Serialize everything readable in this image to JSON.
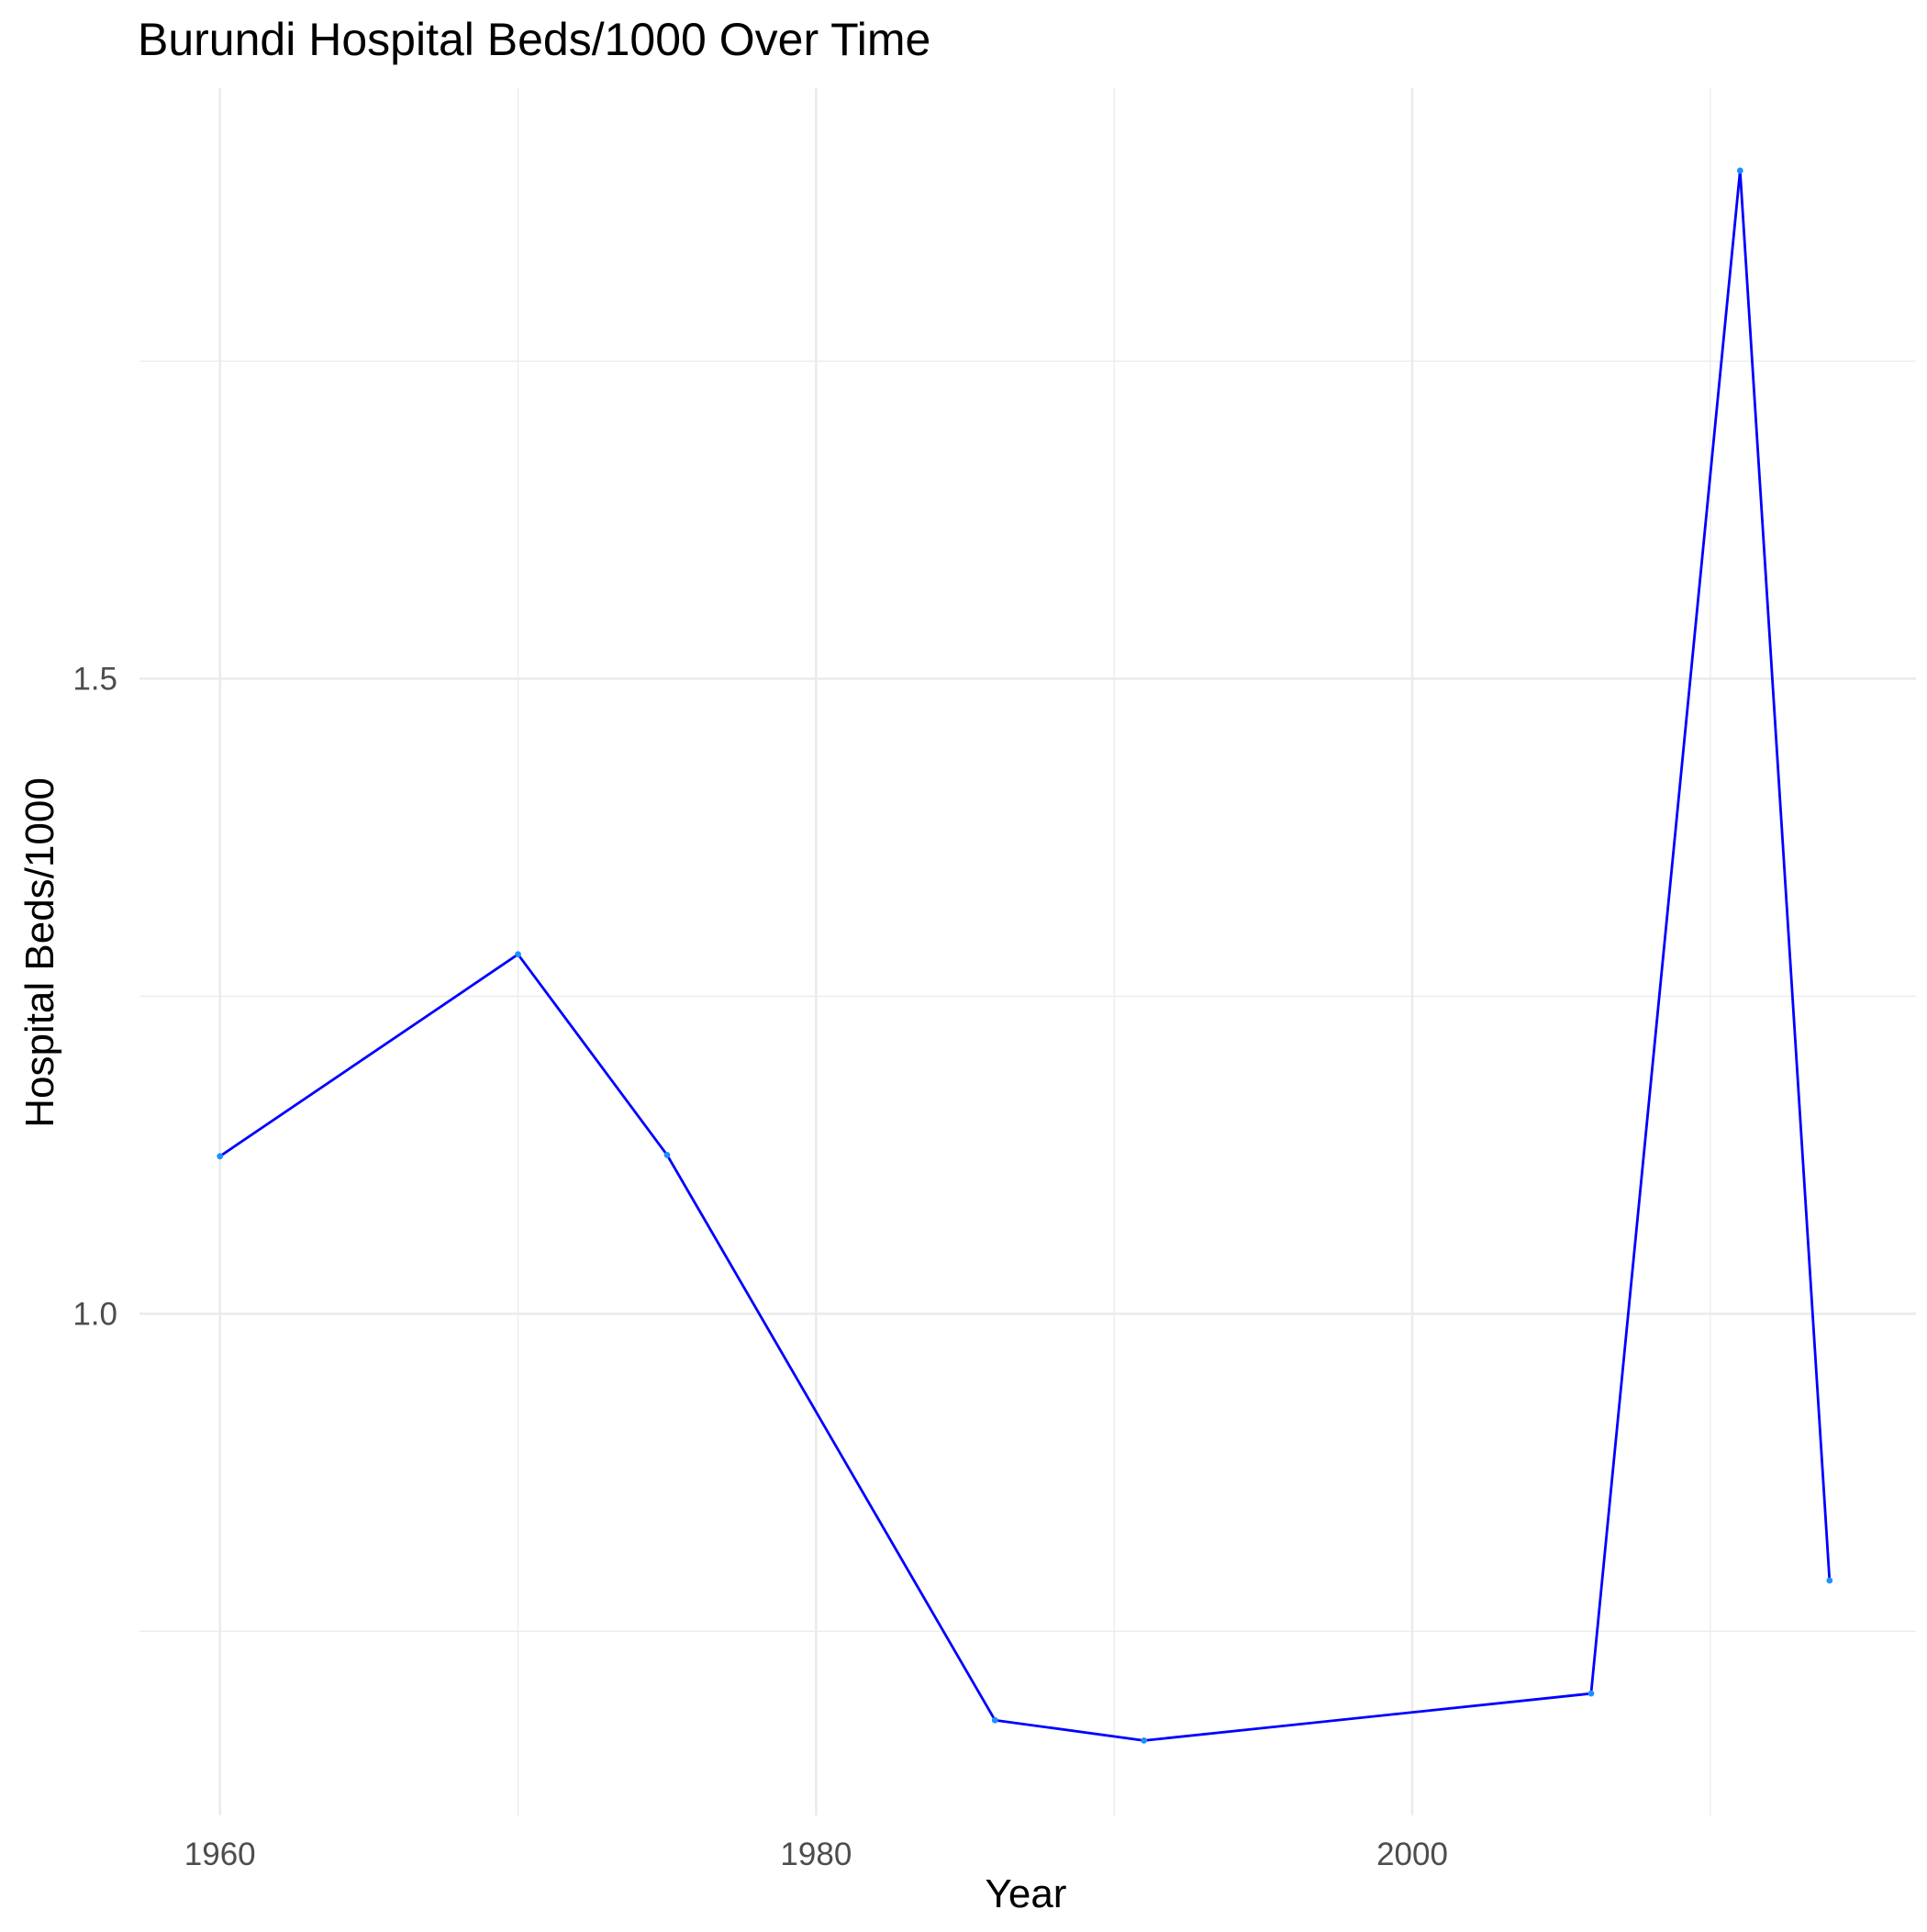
{
  "chart_data": {
    "type": "line",
    "title": "Burundi Hospital Beds/1000 Over Time",
    "xlabel": "Year",
    "ylabel": "Hospital Beds/1000",
    "xlim": [
      1957.3,
      2016.9
    ],
    "ylim": [
      0.605,
      1.965
    ],
    "x_ticks": [
      1960,
      1980,
      2000
    ],
    "x_tick_labels": [
      "1960",
      "1980",
      "2000"
    ],
    "y_ticks": [
      1.0,
      1.5
    ],
    "y_tick_labels": [
      "1.0",
      "1.5"
    ],
    "x_minor": [
      1970,
      1990,
      2010
    ],
    "y_minor": [
      0.75,
      1.25,
      1.75
    ],
    "grid": true,
    "line_color": "#0000ff",
    "point_color": "#1e90ff",
    "series": [
      {
        "x": [
          1960,
          1970,
          1975,
          1986,
          1991,
          2006,
          2011,
          2014
        ],
        "y": [
          1.124,
          1.283,
          1.125,
          0.68,
          0.664,
          0.701,
          1.9,
          0.79
        ]
      }
    ]
  }
}
